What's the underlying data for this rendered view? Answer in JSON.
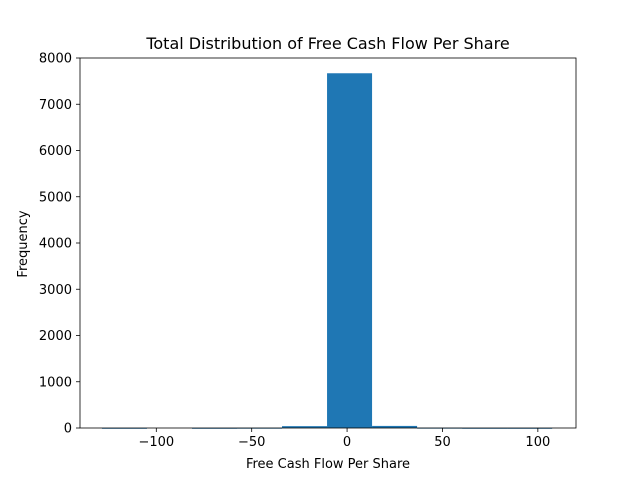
{
  "chart_data": {
    "type": "bar",
    "title": "Total Distribution of Free Cash Flow Per Share",
    "xlabel": "Free Cash Flow Per Share",
    "ylabel": "Frequency",
    "bar_color": "#1f77b4",
    "xlim": [
      -140,
      120
    ],
    "ylim": [
      0,
      8000
    ],
    "x_ticks": [
      -100,
      -50,
      0,
      50,
      100
    ],
    "x_tick_labels": [
      "−100",
      "−50",
      "0",
      "50",
      "100"
    ],
    "y_ticks": [
      0,
      1000,
      2000,
      3000,
      4000,
      5000,
      6000,
      7000,
      8000
    ],
    "y_tick_labels": [
      "0",
      "1000",
      "2000",
      "3000",
      "4000",
      "5000",
      "6000",
      "7000",
      "8000"
    ],
    "grid": false,
    "bins": [
      {
        "x0": -128.5,
        "x1": -104.9,
        "value": 1
      },
      {
        "x0": -104.9,
        "x1": -81.3,
        "value": 0
      },
      {
        "x0": -81.3,
        "x1": -57.7,
        "value": 1
      },
      {
        "x0": -57.7,
        "x1": -34.1,
        "value": 3
      },
      {
        "x0": -34.1,
        "x1": -10.5,
        "value": 40
      },
      {
        "x0": -10.5,
        "x1": 13.1,
        "value": 7670
      },
      {
        "x0": 13.1,
        "x1": 36.7,
        "value": 45
      },
      {
        "x0": 36.7,
        "x1": 60.3,
        "value": 4
      },
      {
        "x0": 60.3,
        "x1": 83.9,
        "value": 1
      },
      {
        "x0": 83.9,
        "x1": 107.5,
        "value": 1
      }
    ]
  }
}
